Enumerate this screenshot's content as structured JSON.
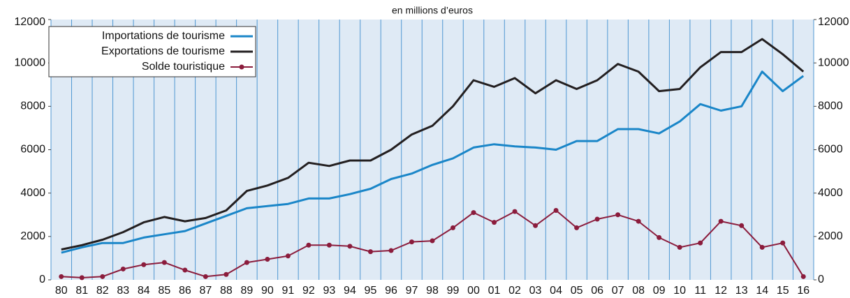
{
  "chart_data": {
    "type": "line",
    "title": "en millions d’euros",
    "categories": [
      "80",
      "81",
      "82",
      "83",
      "84",
      "85",
      "86",
      "87",
      "88",
      "89",
      "90",
      "91",
      "92",
      "93",
      "94",
      "95",
      "96",
      "97",
      "98",
      "99",
      "00",
      "01",
      "02",
      "03",
      "04",
      "05",
      "06",
      "07",
      "08",
      "09",
      "10",
      "11",
      "12",
      "13",
      "14",
      "15",
      "16"
    ],
    "series": [
      {
        "name": "Importations de tourisme",
        "color": "#1a86c8",
        "values": [
          1250,
          1500,
          1700,
          1700,
          1950,
          2100,
          2250,
          2600,
          2950,
          3300,
          3400,
          3500,
          3750,
          3750,
          3950,
          4200,
          4650,
          4900,
          5300,
          5600,
          6100,
          6250,
          6150,
          6100,
          6000,
          6400,
          6400,
          6950,
          6950,
          6750,
          7300,
          8100,
          7800,
          8000,
          9600,
          8700,
          9400
        ]
      },
      {
        "name": "Exportations de tourisme",
        "color": "#231f20",
        "values": [
          1400,
          1600,
          1850,
          2200,
          2650,
          2900,
          2700,
          2850,
          3200,
          4100,
          4350,
          4700,
          5400,
          5250,
          5500,
          5500,
          6000,
          6700,
          7100,
          8000,
          9200,
          8900,
          9300,
          8600,
          9200,
          8800,
          9200,
          9950,
          9600,
          8700,
          8800,
          9800,
          10500,
          10500,
          11100,
          10400,
          9600
        ]
      },
      {
        "name": "Solde touristique",
        "color": "#8b1c3c",
        "markers": true,
        "values": [
          150,
          100,
          150,
          500,
          700,
          800,
          450,
          150,
          250,
          800,
          950,
          1100,
          1600,
          1600,
          1550,
          1300,
          1350,
          1750,
          1800,
          2400,
          3100,
          2650,
          3150,
          2500,
          3200,
          2400,
          2800,
          3000,
          2700,
          1950,
          1500,
          1700,
          2700,
          2500,
          1500,
          1700,
          150
        ]
      }
    ],
    "ylim": [
      0,
      12000
    ],
    "yticks": [
      0,
      2000,
      4000,
      6000,
      8000,
      10000,
      12000
    ],
    "y2lim": [
      0,
      12000
    ],
    "y2ticks": [
      0,
      2000,
      4000,
      6000,
      8000,
      10000,
      12000
    ]
  }
}
